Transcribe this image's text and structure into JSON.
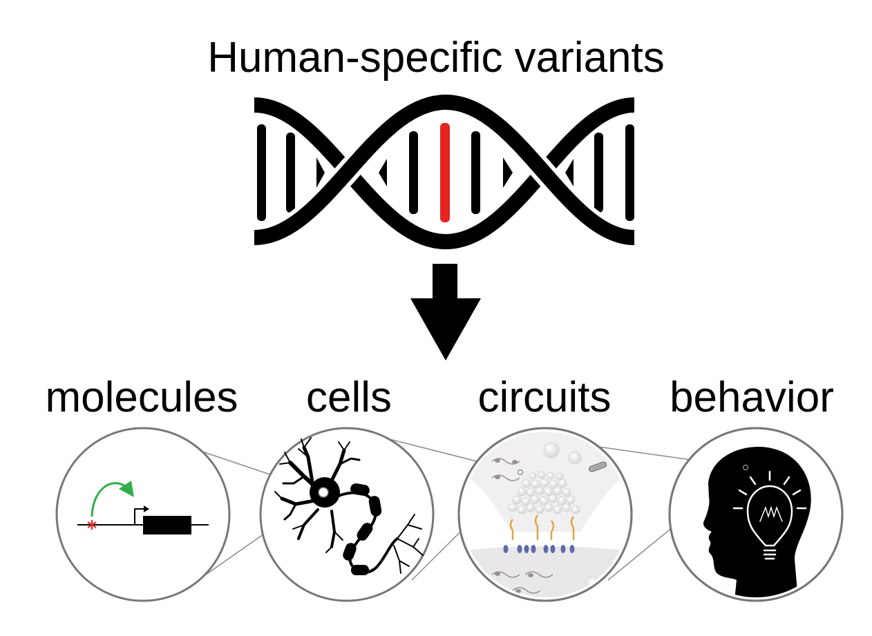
{
  "title": "Human-specific variants",
  "levels": [
    {
      "label": "molecules"
    },
    {
      "label": "cells"
    },
    {
      "label": "circuits"
    },
    {
      "label": "behavior"
    }
  ],
  "colors": {
    "variant": "#e52421",
    "arrow_green": "#2fae49",
    "ink": "#000000",
    "circle_stroke": "#777777",
    "receptor_orange": "#e1a441",
    "receptor_blue": "#5e6aa8"
  },
  "icons": [
    "dna-helix-icon",
    "down-arrow-icon",
    "gene-icon",
    "neuron-icon",
    "synapse-icon",
    "head-lightbulb-icon"
  ]
}
